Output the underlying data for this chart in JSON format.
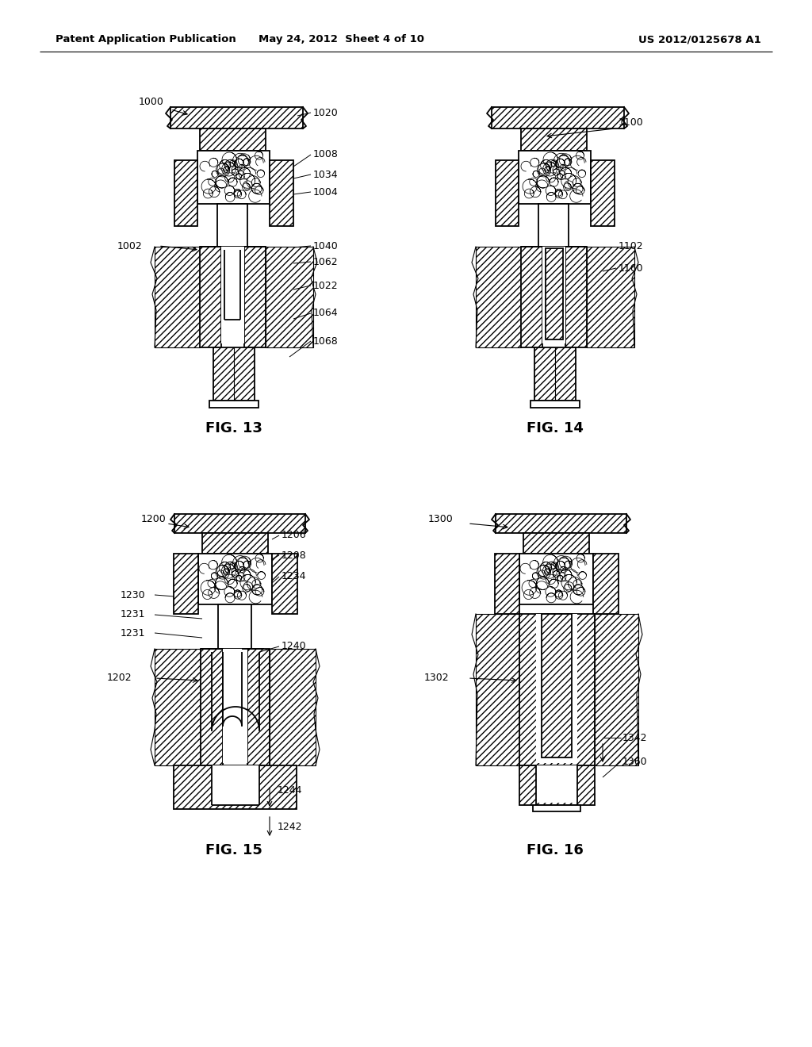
{
  "header_left": "Patent Application Publication",
  "header_center": "May 24, 2012  Sheet 4 of 10",
  "header_right": "US 2012/0125678 A1",
  "fig13_label": "FIG. 13",
  "fig14_label": "FIG. 14",
  "fig15_label": "FIG. 15",
  "fig16_label": "FIG. 16",
  "bg_color": "#ffffff"
}
